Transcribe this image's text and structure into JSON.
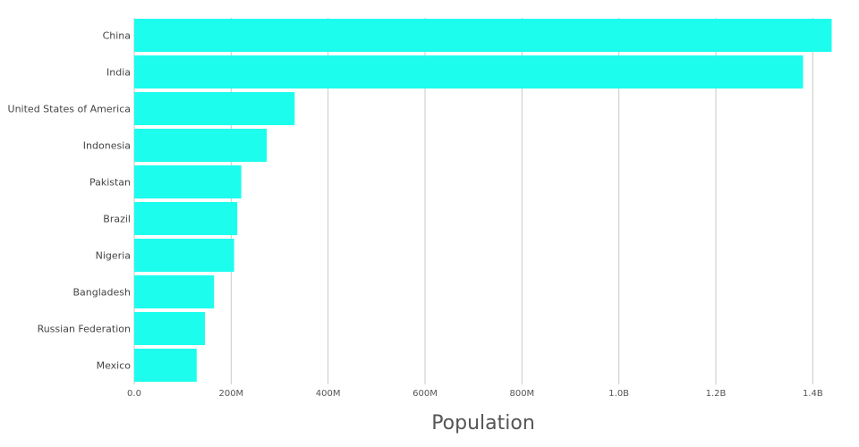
{
  "chart_data": {
    "type": "bar",
    "orientation": "horizontal",
    "categories": [
      "China",
      "India",
      "United States of America",
      "Indonesia",
      "Pakistan",
      "Brazil",
      "Nigeria",
      "Bangladesh",
      "Russian Federation",
      "Mexico"
    ],
    "values": [
      1439000000,
      1380000000,
      331000000,
      273500000,
      220900000,
      212600000,
      206100000,
      164700000,
      145900000,
      128900000
    ],
    "xlabel": "Population",
    "ylabel": "",
    "xlim": [
      0,
      1440000000
    ],
    "xticks": [
      {
        "value": 0,
        "label": "0.0"
      },
      {
        "value": 200000000,
        "label": "200M"
      },
      {
        "value": 400000000,
        "label": "400M"
      },
      {
        "value": 600000000,
        "label": "600M"
      },
      {
        "value": 800000000,
        "label": "800M"
      },
      {
        "value": 1000000000,
        "label": "1.0B"
      },
      {
        "value": 1200000000,
        "label": "1.2B"
      },
      {
        "value": 1400000000,
        "label": "1.4B"
      }
    ],
    "grid": "vertical",
    "bar_color": "#1cfdee",
    "legend": "none"
  }
}
